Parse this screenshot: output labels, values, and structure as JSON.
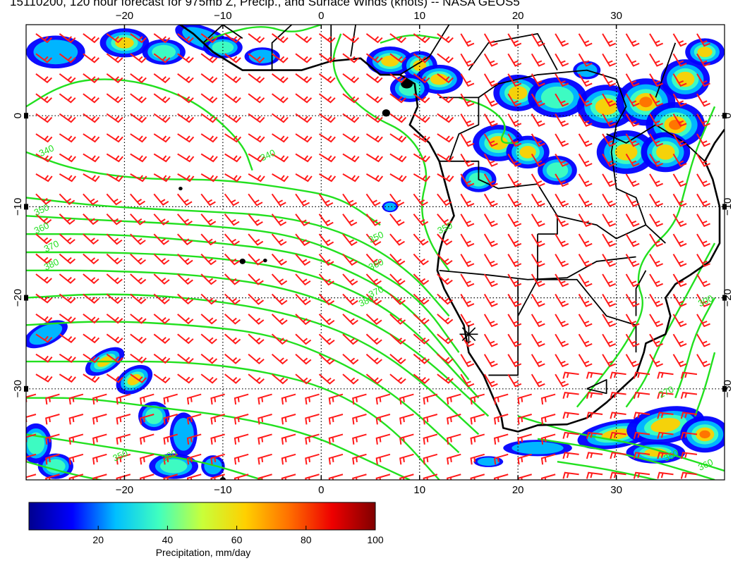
{
  "title": "15110200, 120 hour forecast for 975mb Z, Precip., and Surface Winds (knots) -- NASA GEOS5",
  "map": {
    "lon_range": [
      -30,
      41
    ],
    "lat_range": [
      -40,
      10
    ],
    "lon_ticks": [
      {
        "value": -20,
        "label": "−20"
      },
      {
        "value": -10,
        "label": "−10"
      },
      {
        "value": 0,
        "label": "0"
      },
      {
        "value": 10,
        "label": "10"
      },
      {
        "value": 20,
        "label": "20"
      },
      {
        "value": 30,
        "label": "30"
      }
    ],
    "lat_ticks": [
      {
        "value": 0,
        "label": "0"
      },
      {
        "value": -10,
        "label": "−10"
      },
      {
        "value": -20,
        "label": "−20"
      },
      {
        "value": -30,
        "label": "−30"
      }
    ],
    "grid": "dotted",
    "marker": {
      "lon": 15,
      "lat": -24,
      "symbol": "asterisk"
    },
    "contour_labels": [
      {
        "text": "340",
        "lon": -28.5,
        "lat": -4.5
      },
      {
        "text": "340",
        "lon": -6,
        "lat": -5
      },
      {
        "text": "350",
        "lon": -29,
        "lat": -11
      },
      {
        "text": "360",
        "lon": -29,
        "lat": -13
      },
      {
        "text": "370",
        "lon": -28,
        "lat": -15
      },
      {
        "text": "380",
        "lon": -28,
        "lat": -17
      },
      {
        "text": "350",
        "lon": 12,
        "lat": -13
      },
      {
        "text": "350",
        "lon": 5,
        "lat": -14
      },
      {
        "text": "360",
        "lon": 5,
        "lat": -17
      },
      {
        "text": "370",
        "lon": 5,
        "lat": -20
      },
      {
        "text": "380",
        "lon": 4,
        "lat": -21
      },
      {
        "text": "300",
        "lon": 38.5,
        "lat": -21
      },
      {
        "text": "270",
        "lon": 34.5,
        "lat": -31
      },
      {
        "text": "350",
        "lon": 35,
        "lat": -38
      },
      {
        "text": "360",
        "lon": 38.5,
        "lat": -39
      },
      {
        "text": "380",
        "lon": -16,
        "lat": -38
      },
      {
        "text": "350",
        "lon": -21,
        "lat": -38
      }
    ],
    "colors": {
      "contour": "#22e01f",
      "wind_barb": "#ff1b1b",
      "coastline": "#000000",
      "precip_low": "#0a1f9a"
    }
  },
  "colorbar": {
    "label": "Precipitation, mm/day",
    "ticks": [
      {
        "value": 20,
        "label": "20"
      },
      {
        "value": 40,
        "label": "40"
      },
      {
        "value": 60,
        "label": "60"
      },
      {
        "value": 80,
        "label": "80"
      },
      {
        "value": 100,
        "label": "100"
      }
    ],
    "range": [
      0,
      100
    ],
    "colormap": [
      "#00008f",
      "#0000ff",
      "#00bfff",
      "#40ffbf",
      "#c8ff3a",
      "#ffd000",
      "#ff7000",
      "#ee0000",
      "#800000"
    ]
  }
}
